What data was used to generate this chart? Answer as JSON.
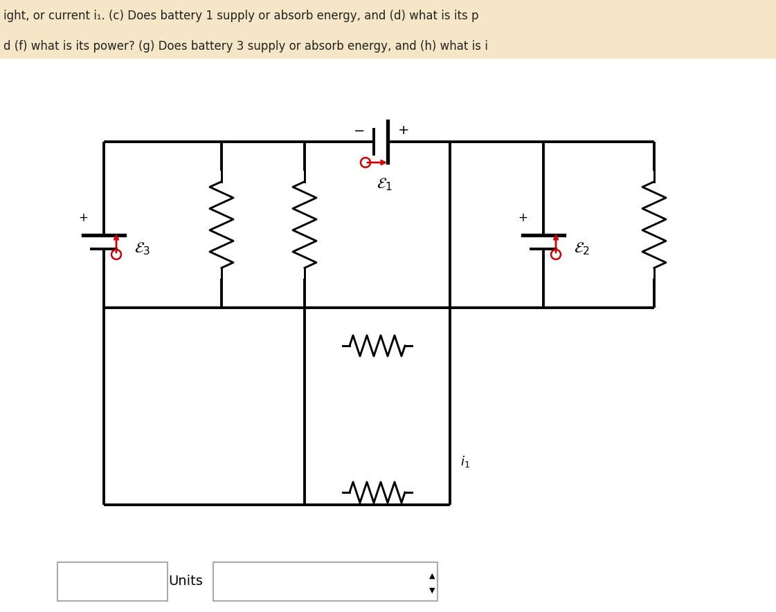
{
  "header_line1": "ight, or current i₁. (c) Does battery 1 supply or absorb energy, and (d) what is its p",
  "header_line2": "d (f) what is its power? (g) Does battery 3 supply or absorb energy, and (h) what is i",
  "bg_header_color": "#f5e6c8",
  "bg_main_color": "#ffffff",
  "line_color": "#000000",
  "red_color": "#cc0000",
  "units_text": "Units",
  "xL": 1.5,
  "xLR1": 3.2,
  "xLR2": 4.4,
  "xCR": 6.5,
  "xRB": 7.85,
  "xRR": 9.45,
  "yTop": 6.8,
  "yMid": 4.4,
  "yBot": 1.55,
  "yE3": 5.35,
  "yE2": 5.35,
  "xE1": 5.5
}
